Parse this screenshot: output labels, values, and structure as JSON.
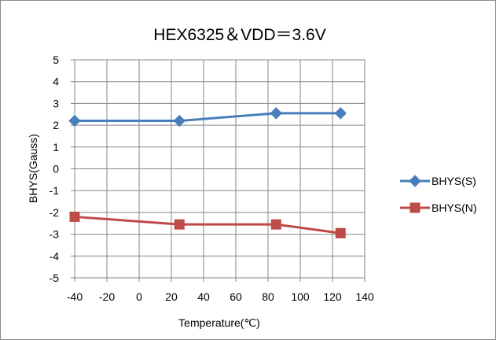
{
  "chart_data": {
    "type": "line",
    "title": "HEX6325＆VDD＝3.6V",
    "xlabel": "Temperature(℃)",
    "ylabel": "BHYS(Gauss)",
    "xlim": [
      -40,
      140
    ],
    "ylim": [
      -5,
      5
    ],
    "xticks": [
      -40,
      -20,
      0,
      20,
      40,
      60,
      80,
      100,
      120,
      140
    ],
    "yticks": [
      5,
      4,
      3,
      2,
      1,
      0,
      -1,
      -2,
      -3,
      -4,
      -5
    ],
    "grid": true,
    "legend_position": "right",
    "series": [
      {
        "name": "BHYS(S)",
        "color": "#4a7ebb",
        "marker": "diamond",
        "x": [
          -40,
          25,
          85,
          125
        ],
        "y": [
          2.2,
          2.2,
          2.55,
          2.55
        ]
      },
      {
        "name": "BHYS(N)",
        "color": "#be4b48",
        "marker": "square",
        "x": [
          -40,
          25,
          85,
          125
        ],
        "y": [
          -2.2,
          -2.55,
          -2.55,
          -2.95
        ]
      }
    ]
  }
}
